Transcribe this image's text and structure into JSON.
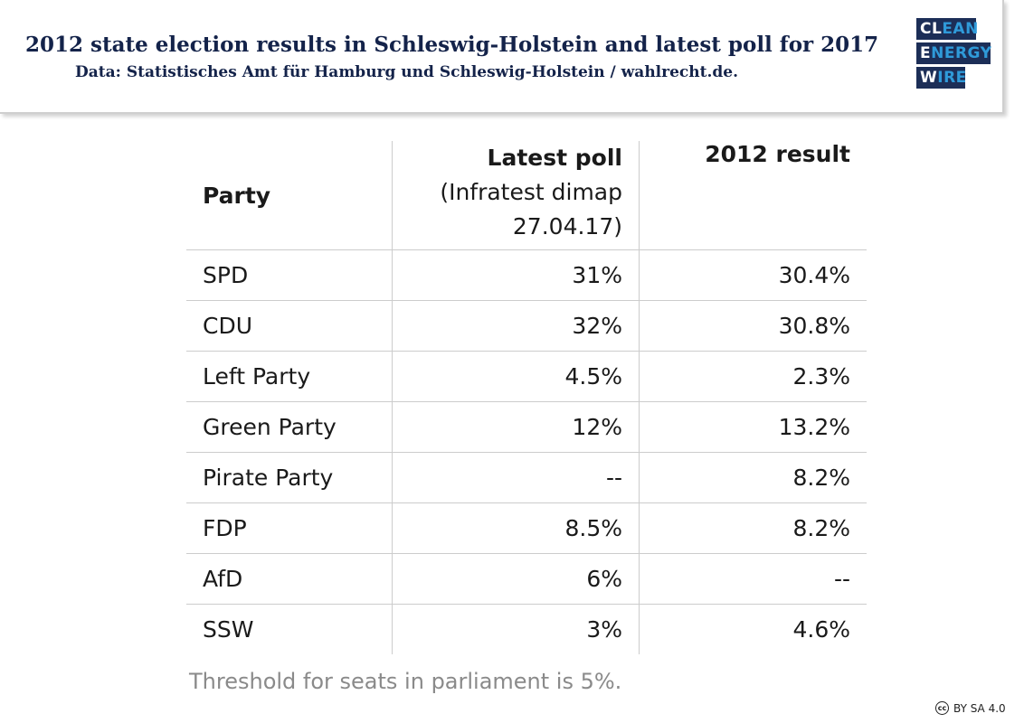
{
  "header": {
    "title": "2012 state election results in Schleswig-Holstein and latest poll for 2017",
    "subtitle": "Data: Statistisches Amt für Hamburg und Schleswig-Holstein / wahlrecht.de."
  },
  "logo": {
    "line1_a": "CL",
    "line1_b": "EAN",
    "line2_a": "E",
    "line2_b": "NERGY",
    "line3_a": "W",
    "line3_b": "IRE",
    "colors": {
      "box": "#1c2e57",
      "text": "#ffffff",
      "highlight": "#2f9ad9"
    }
  },
  "chart_data": {
    "type": "table",
    "columns": [
      {
        "label": "Party"
      },
      {
        "label": "Latest poll",
        "sublabel_1": "(Infratest dimap",
        "sublabel_2": "27.04.17)"
      },
      {
        "label": "2012 result"
      }
    ],
    "rows": [
      {
        "party": "SPD",
        "poll": "31%",
        "result": "30.4%"
      },
      {
        "party": "CDU",
        "poll": "32%",
        "result": "30.8%"
      },
      {
        "party": "Left Party",
        "poll": "4.5%",
        "result": "2.3%"
      },
      {
        "party": "Green Party",
        "poll": "12%",
        "result": "13.2%"
      },
      {
        "party": "Pirate Party",
        "poll": "--",
        "result": "8.2%"
      },
      {
        "party": "FDP",
        "poll": "8.5%",
        "result": "8.2%"
      },
      {
        "party": "AfD",
        "poll": "6%",
        "result": "--"
      },
      {
        "party": "SSW",
        "poll": "3%",
        "result": "4.6%"
      }
    ]
  },
  "footnote": "Threshold for seats in parliament is 5%.",
  "license": {
    "icon": "cc",
    "text": "BY SA 4.0"
  }
}
